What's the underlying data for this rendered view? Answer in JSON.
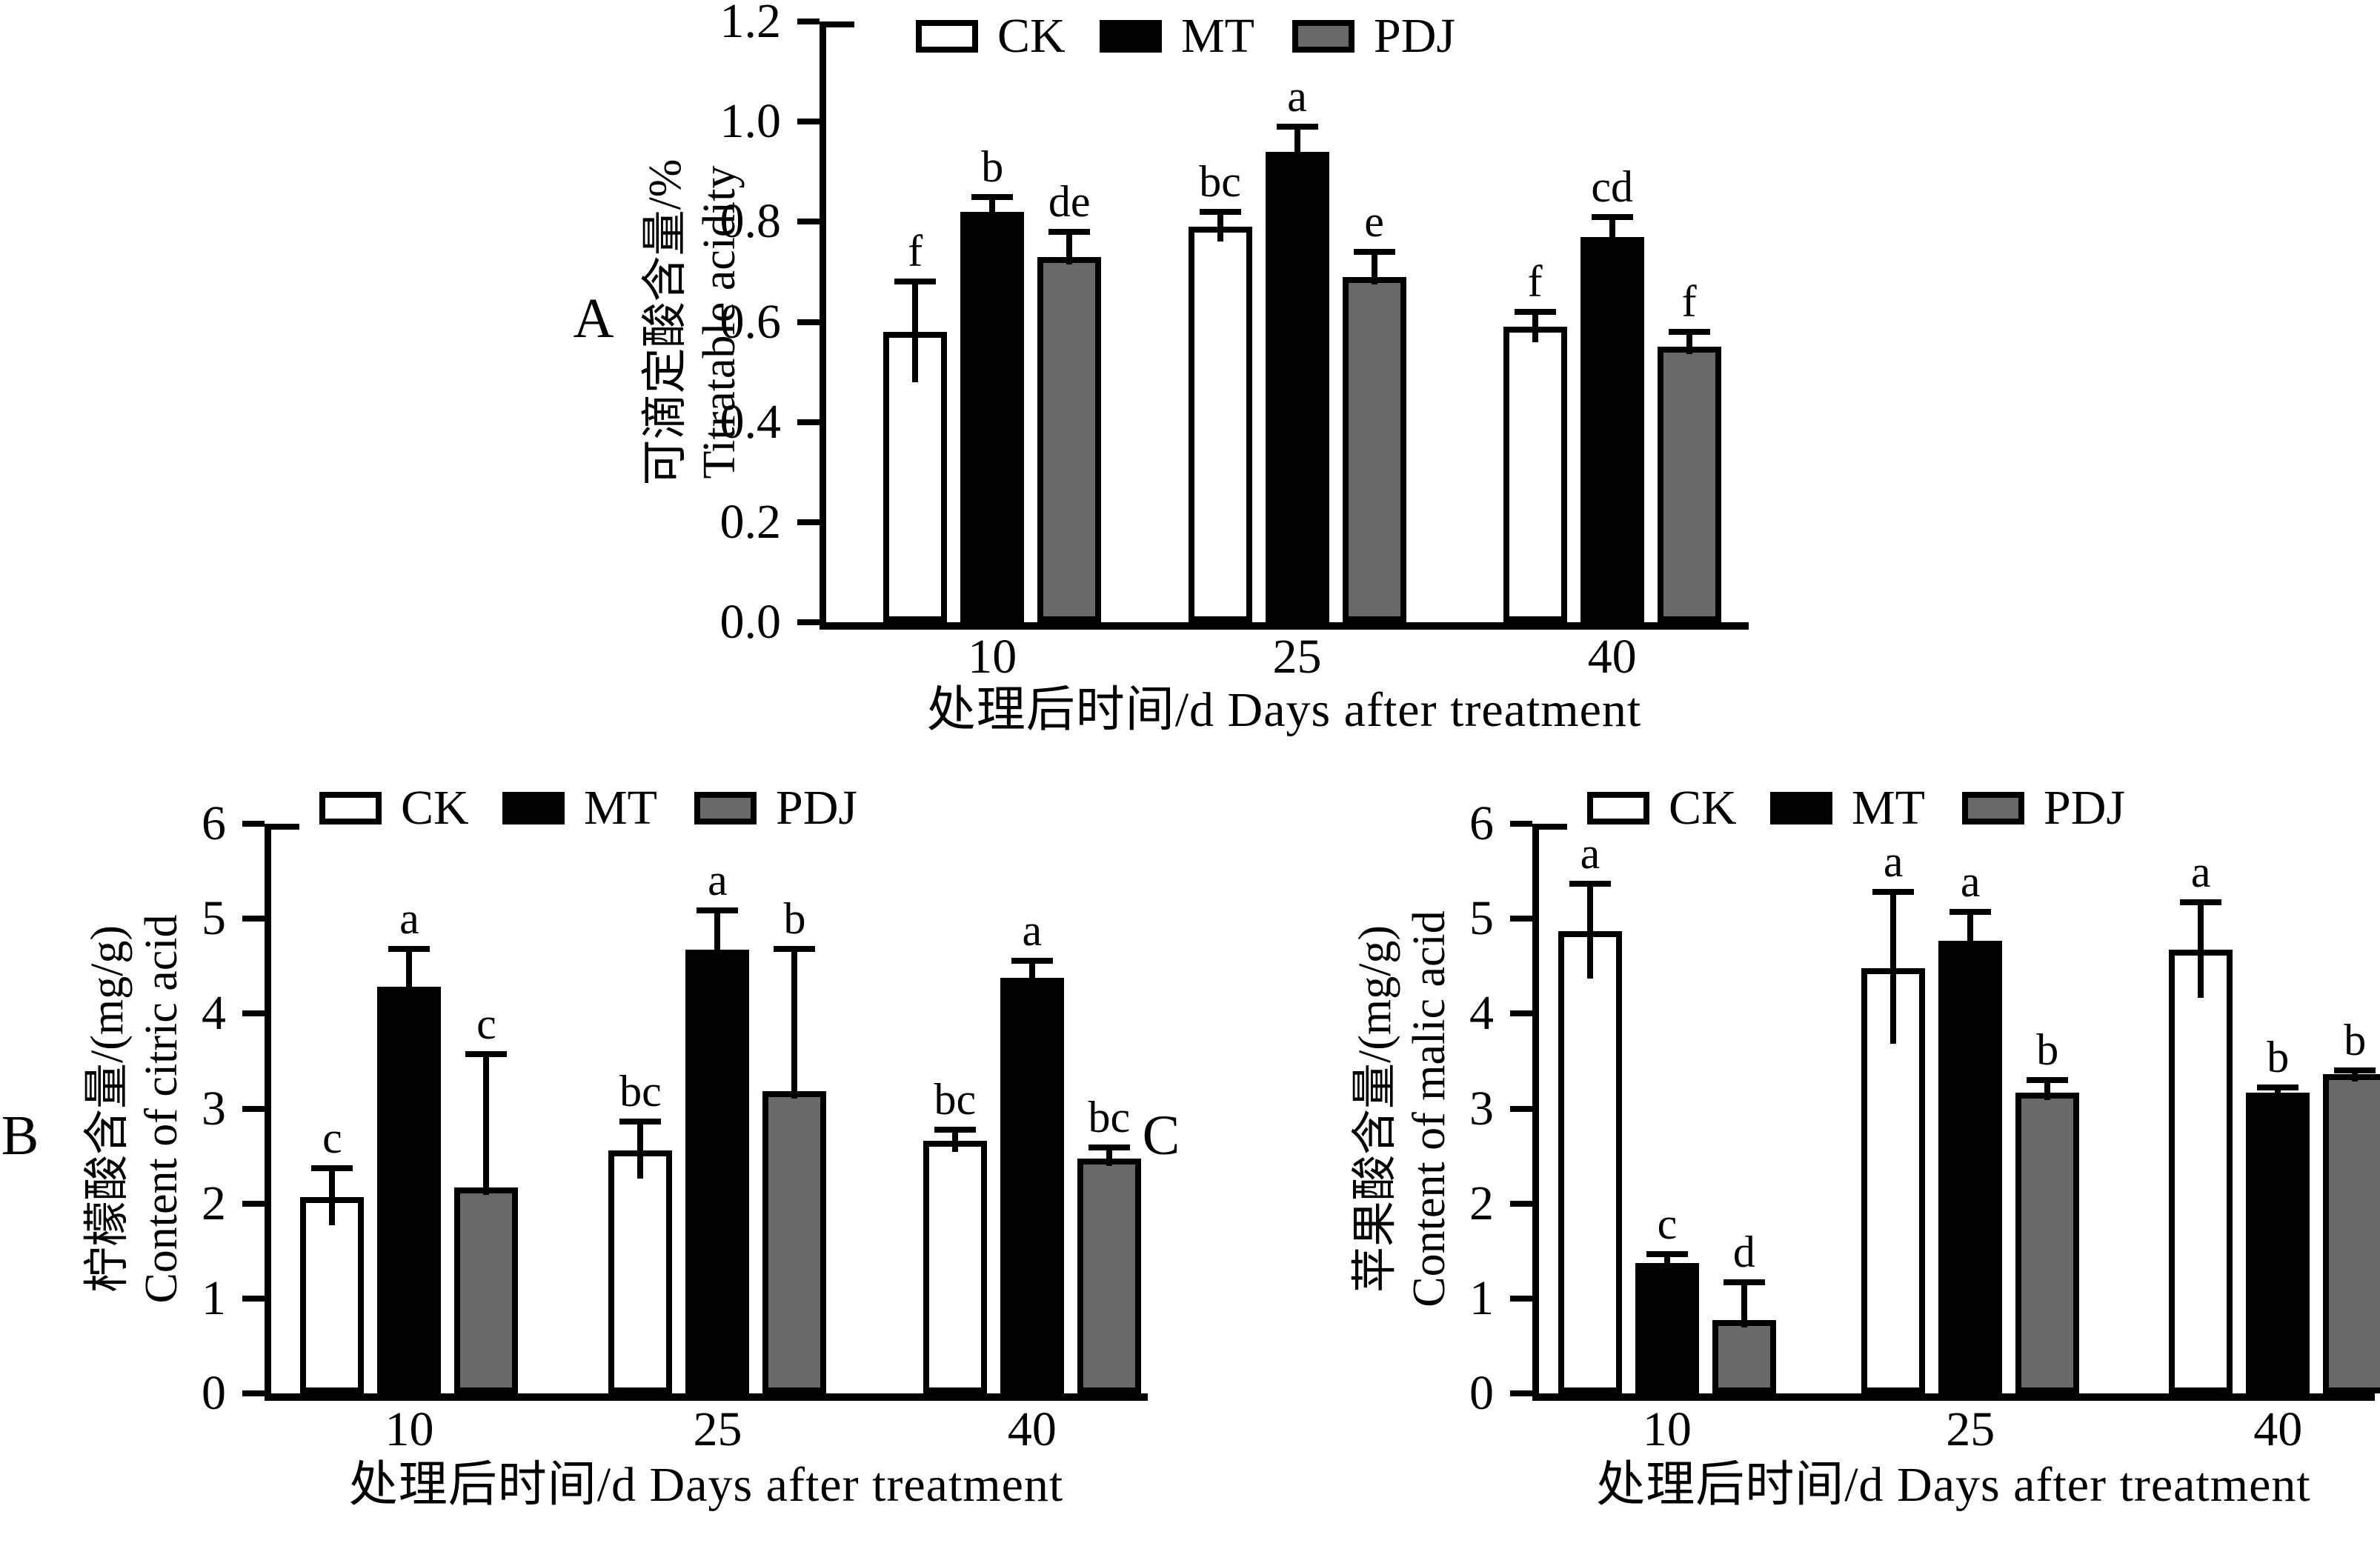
{
  "page": {
    "background": "#ffffff"
  },
  "colors": {
    "axis": "#000000",
    "ck_fill": "#ffffff",
    "mt_fill": "#000000",
    "pdj_fill": "#696969"
  },
  "legend": {
    "items": [
      {
        "label": "CK",
        "fill": "#ffffff"
      },
      {
        "label": "MT",
        "fill": "#000000"
      },
      {
        "label": "PDJ",
        "fill": "#696969"
      }
    ]
  },
  "chart_data": [
    {
      "id": "A",
      "type": "bar",
      "panel_label": "A",
      "ylabel_cn": "可滴定酸含量/%",
      "ylabel_en": "Titratable acidity",
      "xlabel": "处理后时间/d Days after treatment",
      "categories": [
        "10",
        "25",
        "40"
      ],
      "ylim": [
        0,
        1.2
      ],
      "ytick_step": 0.2,
      "ytick_decimals": 1,
      "grid": false,
      "legend_position": "top",
      "series": [
        {
          "name": "CK",
          "fill": "#ffffff",
          "values": [
            0.58,
            0.79,
            0.59
          ],
          "errors": [
            0.1,
            0.03,
            0.03
          ],
          "letters": [
            "f",
            "bc",
            "f"
          ]
        },
        {
          "name": "MT",
          "fill": "#000000",
          "values": [
            0.82,
            0.94,
            0.77
          ],
          "errors": [
            0.03,
            0.05,
            0.04
          ],
          "letters": [
            "b",
            "a",
            "cd"
          ]
        },
        {
          "name": "PDJ",
          "fill": "#696969",
          "values": [
            0.73,
            0.69,
            0.55
          ],
          "errors": [
            0.05,
            0.05,
            0.03
          ],
          "letters": [
            "de",
            "e",
            "f"
          ]
        }
      ]
    },
    {
      "id": "B",
      "type": "bar",
      "panel_label": "B",
      "ylabel_cn": "柠檬酸含量/(mg/g)",
      "ylabel_en": "Content of citric acid",
      "xlabel": "处理后时间/d Days after treatment",
      "categories": [
        "10",
        "25",
        "40"
      ],
      "ylim": [
        0,
        6
      ],
      "ytick_step": 1,
      "ytick_decimals": 0,
      "grid": false,
      "legend_position": "top",
      "series": [
        {
          "name": "CK",
          "fill": "#ffffff",
          "values": [
            2.07,
            2.56,
            2.66
          ],
          "errors": [
            0.3,
            0.3,
            0.12
          ],
          "letters": [
            "c",
            "bc",
            "bc"
          ]
        },
        {
          "name": "MT",
          "fill": "#000000",
          "values": [
            4.28,
            4.67,
            4.38
          ],
          "errors": [
            0.4,
            0.42,
            0.18
          ],
          "letters": [
            "a",
            "a",
            "a"
          ]
        },
        {
          "name": "PDJ",
          "fill": "#696969",
          "values": [
            2.17,
            3.18,
            2.47
          ],
          "errors": [
            1.4,
            1.5,
            0.12
          ],
          "letters": [
            "c",
            "b",
            "bc"
          ]
        }
      ]
    },
    {
      "id": "C",
      "type": "bar",
      "panel_label": "C",
      "ylabel_cn": "苹果酸含量/(mg/g)",
      "ylabel_en": "Content of malic acid",
      "xlabel": "处理后时间/d Days after treatment",
      "categories": [
        "10",
        "25",
        "40"
      ],
      "ylim": [
        0,
        6
      ],
      "ytick_step": 1,
      "ytick_decimals": 0,
      "grid": false,
      "legend_position": "top",
      "series": [
        {
          "name": "CK",
          "fill": "#ffffff",
          "values": [
            4.87,
            4.48,
            4.67
          ],
          "errors": [
            0.5,
            0.8,
            0.5
          ],
          "letters": [
            "a",
            "a",
            "a"
          ]
        },
        {
          "name": "MT",
          "fill": "#000000",
          "values": [
            1.37,
            4.77,
            3.17
          ],
          "errors": [
            0.1,
            0.3,
            0.05
          ],
          "letters": [
            "c",
            "a",
            "b"
          ]
        },
        {
          "name": "PDJ",
          "fill": "#696969",
          "values": [
            0.77,
            3.17,
            3.36
          ],
          "errors": [
            0.4,
            0.13,
            0.04
          ],
          "letters": [
            "d",
            "b",
            "b"
          ]
        }
      ]
    }
  ]
}
